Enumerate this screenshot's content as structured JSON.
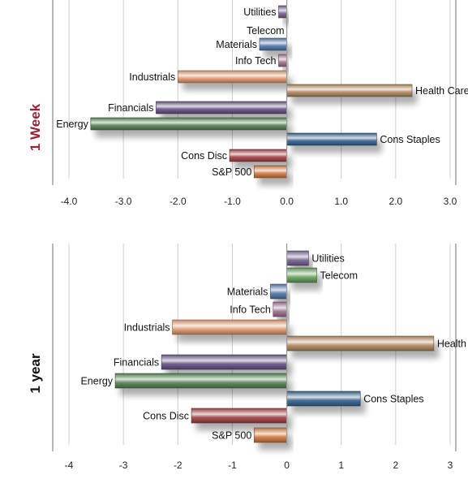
{
  "colors": {
    "utilities": "#7e6a9a",
    "telecom": "#6fa860",
    "materials": "#5a7fb0",
    "info_tech": "#a87a9a",
    "industrials": "#e8a078",
    "health_care": "#b89068",
    "financials": "#6e5a8e",
    "energy": "#5e8a5c",
    "cons_staples": "#3e6a98",
    "cons_disc": "#a84a4e",
    "sp500": "#d8824a"
  },
  "chart_data": [
    {
      "id": "week",
      "type": "bar",
      "orientation": "horizontal",
      "side_label": "1 Week",
      "xlim": [
        -4,
        3
      ],
      "x_ticks": [
        "-4.0",
        "-3.0",
        "-2.0",
        "-1.0",
        "0.0",
        "1.0",
        "2.0",
        "3.0"
      ],
      "grid": true,
      "categories": [
        "Utilities",
        "Telecom",
        "Materials",
        "Info Tech",
        "Industrials",
        "Health Care",
        "Financials",
        "Energy",
        "Cons Staples",
        "Cons Disc",
        "S&P 500"
      ],
      "values": [
        -0.15,
        0.0,
        -0.5,
        -0.15,
        -2.0,
        2.3,
        -2.4,
        -3.6,
        1.65,
        -1.05,
        -0.6
      ]
    },
    {
      "id": "year",
      "type": "bar",
      "orientation": "horizontal",
      "side_label": "1 year",
      "xlim": [
        -4,
        3
      ],
      "x_ticks": [
        "-4",
        "-3",
        "-2",
        "-1",
        "0",
        "1",
        "2",
        "3"
      ],
      "grid": true,
      "categories": [
        "Utilities",
        "Telecom",
        "Materials",
        "Info Tech",
        "Industrials",
        "Health Care",
        "Financials",
        "Energy",
        "Cons Staples",
        "Cons Disc",
        "S&P 500"
      ],
      "values": [
        0.4,
        0.55,
        -0.3,
        -0.25,
        -2.1,
        2.7,
        -2.3,
        -3.15,
        1.35,
        -1.75,
        -0.6
      ]
    }
  ]
}
